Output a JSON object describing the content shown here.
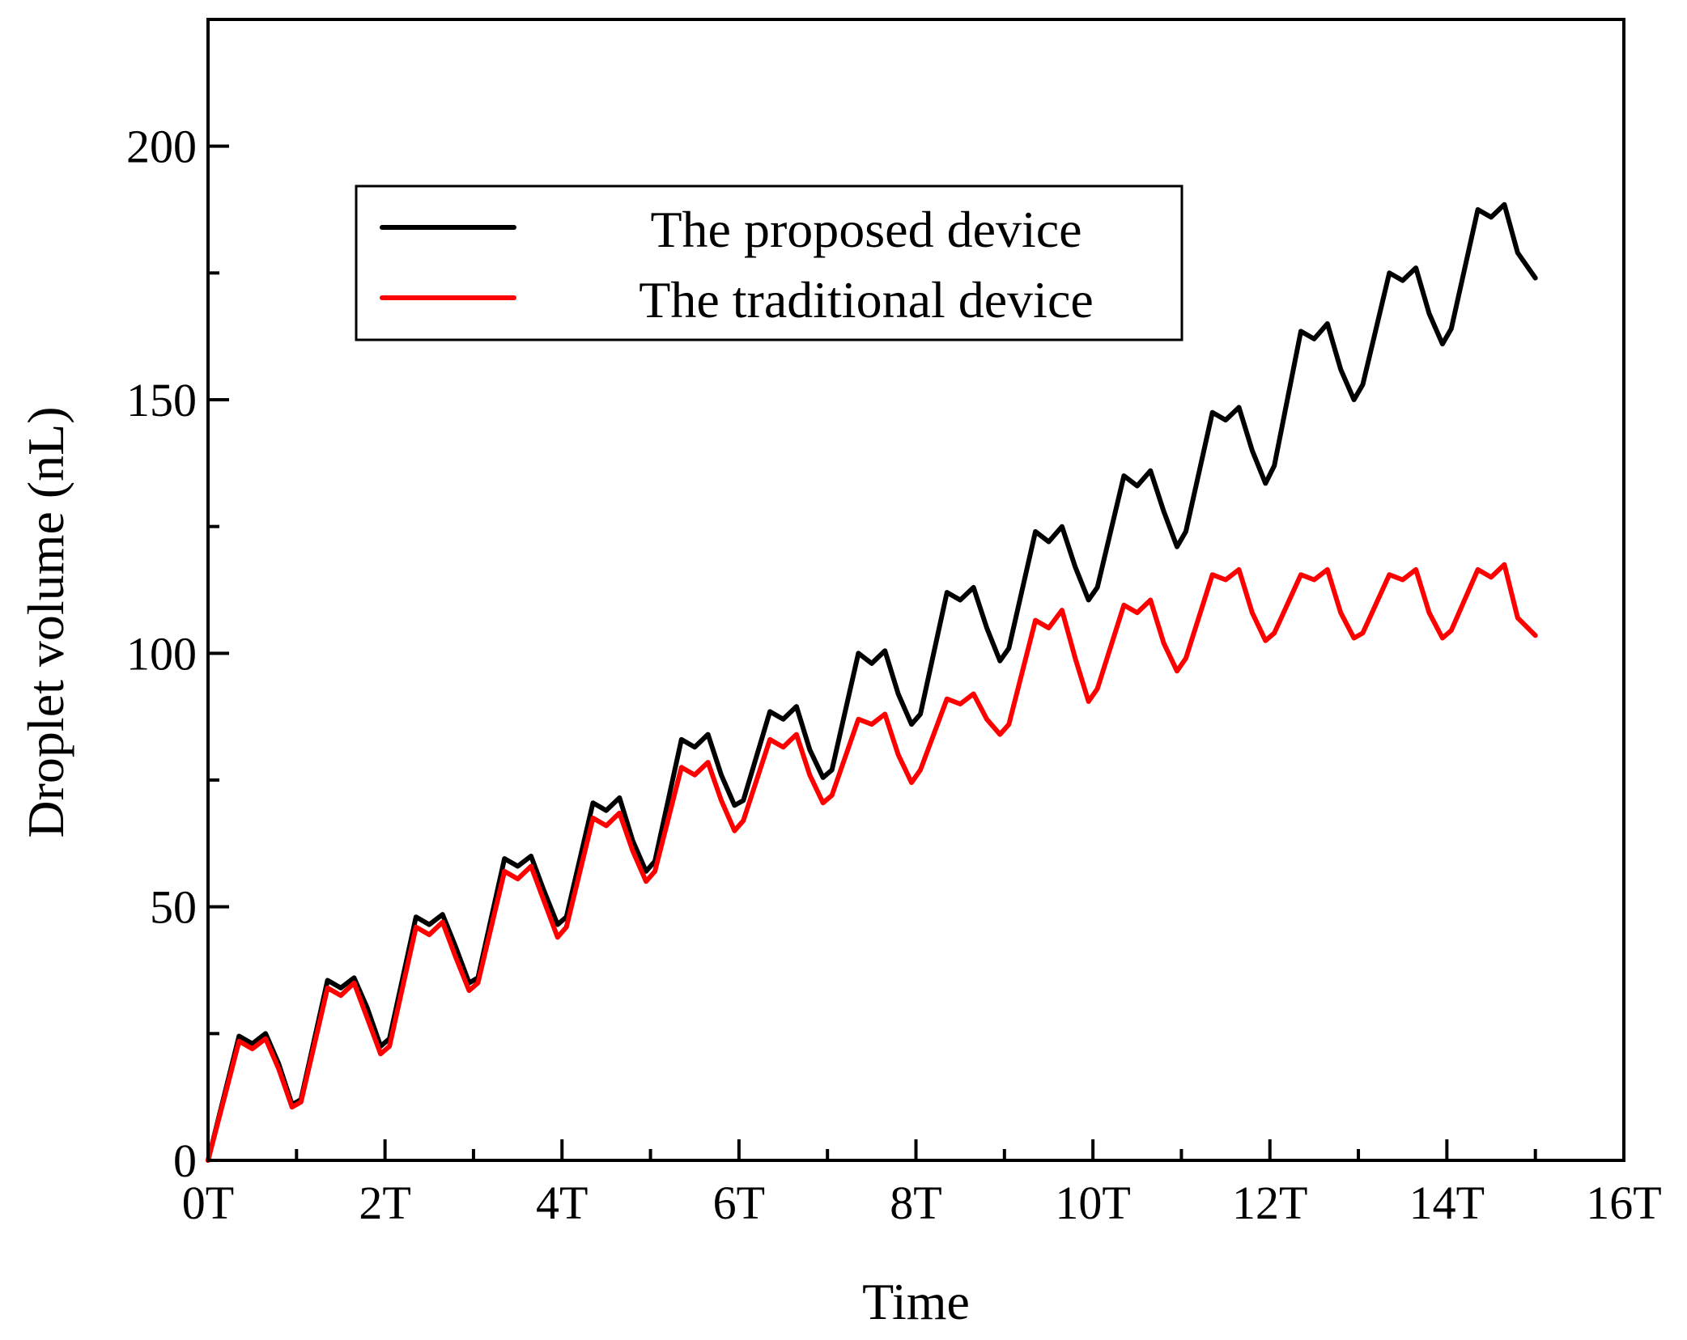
{
  "chart_data": {
    "type": "line",
    "title": "",
    "xlabel": "Time",
    "ylabel": "Droplet volume (nL)",
    "xlim": [
      0,
      16
    ],
    "ylim": [
      0,
      225
    ],
    "xticks": [
      0,
      2,
      4,
      6,
      8,
      10,
      12,
      14,
      16
    ],
    "xtick_labels": [
      "0T",
      "2T",
      "4T",
      "6T",
      "8T",
      "10T",
      "12T",
      "14T",
      "16T"
    ],
    "yticks": [
      0,
      50,
      100,
      150,
      200
    ],
    "ytick_labels": [
      "0",
      "50",
      "100",
      "150",
      "200"
    ],
    "grid": false,
    "legend_position": "top-center",
    "series": [
      {
        "name": "The proposed device",
        "color": "#000000",
        "points": [
          [
            0,
            0
          ],
          [
            0.35,
            24.5
          ],
          [
            0.5,
            23
          ],
          [
            0.65,
            25
          ],
          [
            0.8,
            19
          ],
          [
            0.95,
            11
          ],
          [
            1.05,
            12
          ],
          [
            1.35,
            35.5
          ],
          [
            1.5,
            34
          ],
          [
            1.65,
            36
          ],
          [
            1.8,
            30
          ],
          [
            1.95,
            22.5
          ],
          [
            2.05,
            24
          ],
          [
            2.35,
            48
          ],
          [
            2.5,
            46.5
          ],
          [
            2.65,
            48.5
          ],
          [
            2.8,
            42
          ],
          [
            2.95,
            35
          ],
          [
            3.05,
            36
          ],
          [
            3.35,
            59.5
          ],
          [
            3.5,
            58
          ],
          [
            3.65,
            60
          ],
          [
            3.8,
            53
          ],
          [
            3.95,
            46.5
          ],
          [
            4.05,
            48
          ],
          [
            4.35,
            70.5
          ],
          [
            4.5,
            69
          ],
          [
            4.65,
            71.5
          ],
          [
            4.8,
            63
          ],
          [
            4.95,
            57
          ],
          [
            5.05,
            59
          ],
          [
            5.35,
            83
          ],
          [
            5.5,
            81.5
          ],
          [
            5.65,
            84
          ],
          [
            5.8,
            76
          ],
          [
            5.95,
            70
          ],
          [
            6.05,
            71
          ],
          [
            6.35,
            88.5
          ],
          [
            6.5,
            87
          ],
          [
            6.65,
            89.5
          ],
          [
            6.8,
            81
          ],
          [
            6.95,
            75.5
          ],
          [
            7.05,
            77
          ],
          [
            7.35,
            100
          ],
          [
            7.5,
            98
          ],
          [
            7.65,
            100.5
          ],
          [
            7.8,
            92
          ],
          [
            7.95,
            86
          ],
          [
            8.05,
            88
          ],
          [
            8.35,
            112
          ],
          [
            8.5,
            110.5
          ],
          [
            8.65,
            113
          ],
          [
            8.8,
            105
          ],
          [
            8.95,
            98.5
          ],
          [
            9.05,
            101
          ],
          [
            9.35,
            124
          ],
          [
            9.5,
            122
          ],
          [
            9.65,
            125
          ],
          [
            9.8,
            117
          ],
          [
            9.95,
            110.5
          ],
          [
            10.05,
            113
          ],
          [
            10.35,
            135
          ],
          [
            10.5,
            133
          ],
          [
            10.65,
            136
          ],
          [
            10.8,
            128
          ],
          [
            10.95,
            121
          ],
          [
            11.05,
            124
          ],
          [
            11.35,
            147.5
          ],
          [
            11.5,
            146
          ],
          [
            11.65,
            148.5
          ],
          [
            11.8,
            140
          ],
          [
            11.95,
            133.5
          ],
          [
            12.05,
            137
          ],
          [
            12.35,
            163.5
          ],
          [
            12.5,
            162
          ],
          [
            12.65,
            165
          ],
          [
            12.8,
            156
          ],
          [
            12.95,
            150
          ],
          [
            13.05,
            153
          ],
          [
            13.35,
            175
          ],
          [
            13.5,
            173.5
          ],
          [
            13.65,
            176
          ],
          [
            13.8,
            167
          ],
          [
            13.95,
            161
          ],
          [
            14.05,
            164
          ],
          [
            14.35,
            187.5
          ],
          [
            14.5,
            186
          ],
          [
            14.65,
            188.5
          ],
          [
            14.8,
            179
          ],
          [
            15.0,
            174
          ]
        ]
      },
      {
        "name": "The traditional device",
        "color": "#ff0000",
        "points": [
          [
            0,
            0
          ],
          [
            0.35,
            23.5
          ],
          [
            0.5,
            22
          ],
          [
            0.65,
            24
          ],
          [
            0.8,
            18
          ],
          [
            0.95,
            10.5
          ],
          [
            1.05,
            11.5
          ],
          [
            1.35,
            34
          ],
          [
            1.5,
            32.5
          ],
          [
            1.65,
            35
          ],
          [
            1.8,
            28
          ],
          [
            1.95,
            21
          ],
          [
            2.05,
            22.5
          ],
          [
            2.35,
            46
          ],
          [
            2.5,
            44.5
          ],
          [
            2.65,
            47
          ],
          [
            2.8,
            40
          ],
          [
            2.95,
            33.5
          ],
          [
            3.05,
            35
          ],
          [
            3.35,
            57
          ],
          [
            3.5,
            55.5
          ],
          [
            3.65,
            58
          ],
          [
            3.8,
            51
          ],
          [
            3.95,
            44
          ],
          [
            4.05,
            46
          ],
          [
            4.35,
            67.5
          ],
          [
            4.5,
            66
          ],
          [
            4.65,
            68.5
          ],
          [
            4.8,
            61
          ],
          [
            4.95,
            55
          ],
          [
            5.05,
            57
          ],
          [
            5.35,
            77.5
          ],
          [
            5.5,
            76
          ],
          [
            5.65,
            78.5
          ],
          [
            5.8,
            71
          ],
          [
            5.95,
            65
          ],
          [
            6.05,
            67
          ],
          [
            6.35,
            83
          ],
          [
            6.5,
            81.5
          ],
          [
            6.65,
            84
          ],
          [
            6.8,
            76
          ],
          [
            6.95,
            70.5
          ],
          [
            7.05,
            72
          ],
          [
            7.35,
            87
          ],
          [
            7.5,
            86
          ],
          [
            7.65,
            88
          ],
          [
            7.8,
            80
          ],
          [
            7.95,
            74.5
          ],
          [
            8.05,
            77
          ],
          [
            8.35,
            91
          ],
          [
            8.5,
            90
          ],
          [
            8.65,
            92
          ],
          [
            8.8,
            87
          ],
          [
            8.95,
            84
          ],
          [
            9.05,
            86
          ],
          [
            9.35,
            106.5
          ],
          [
            9.5,
            105
          ],
          [
            9.65,
            108.5
          ],
          [
            9.8,
            99
          ],
          [
            9.95,
            90.5
          ],
          [
            10.05,
            93
          ],
          [
            10.35,
            109.5
          ],
          [
            10.5,
            108
          ],
          [
            10.65,
            110.5
          ],
          [
            10.8,
            102
          ],
          [
            10.95,
            96.5
          ],
          [
            11.05,
            99
          ],
          [
            11.35,
            115.5
          ],
          [
            11.5,
            114.5
          ],
          [
            11.65,
            116.5
          ],
          [
            11.8,
            108
          ],
          [
            11.95,
            102.5
          ],
          [
            12.05,
            104
          ],
          [
            12.35,
            115.5
          ],
          [
            12.5,
            114.5
          ],
          [
            12.65,
            116.5
          ],
          [
            12.8,
            108
          ],
          [
            12.95,
            103
          ],
          [
            13.05,
            104
          ],
          [
            13.35,
            115.5
          ],
          [
            13.5,
            114.5
          ],
          [
            13.65,
            116.5
          ],
          [
            13.8,
            108
          ],
          [
            13.95,
            103
          ],
          [
            14.05,
            104.5
          ],
          [
            14.35,
            116.5
          ],
          [
            14.5,
            115
          ],
          [
            14.65,
            117.5
          ],
          [
            14.8,
            107
          ],
          [
            15.0,
            103.5
          ]
        ]
      }
    ]
  }
}
